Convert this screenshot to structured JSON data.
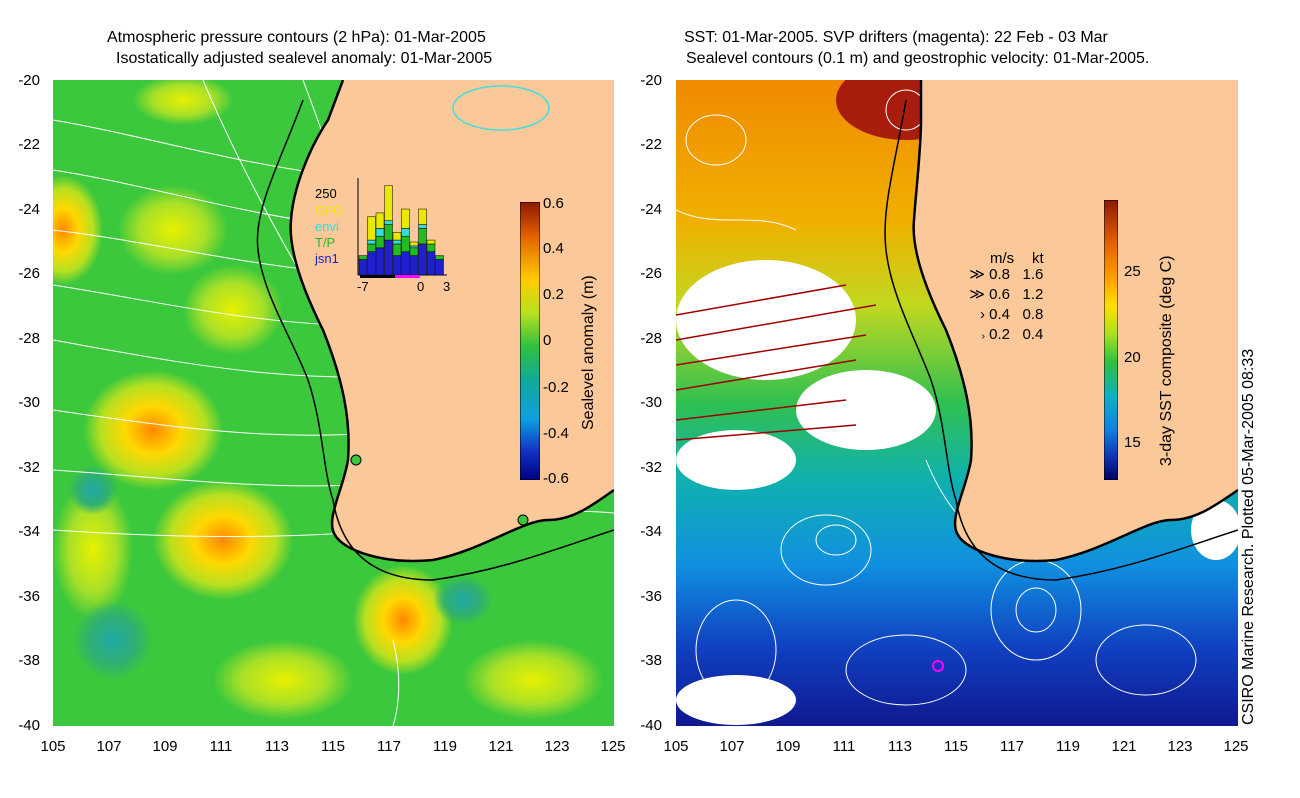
{
  "left_panel": {
    "title_line1": "Atmospheric pressure contours (2 hPa): 01-Mar-2005",
    "title_line2": "Isostatically adjusted sealevel anomaly: 01-Mar-2005",
    "colorbar": {
      "label": "Sealevel anomaly (m)",
      "ticks": [
        "0.6",
        "0.4",
        "0.2",
        "0",
        "-0.2",
        "-0.4",
        "-0.6"
      ],
      "range": [
        -0.6,
        0.6
      ]
    },
    "inset": {
      "ymax_label": "250",
      "legend": [
        "GFO",
        "envi",
        "T/P",
        "jsn1"
      ],
      "legend_colors": [
        "#e8e800",
        "#33dcdc",
        "#22bb22",
        "#1f1fd0"
      ],
      "x_ticks": [
        "-7",
        "0",
        "3"
      ],
      "bars": [
        {
          "gfo": 0,
          "envi": 0,
          "tp": 10,
          "jsn1": 40
        },
        {
          "gfo": 60,
          "envi": 10,
          "tp": 20,
          "jsn1": 60
        },
        {
          "gfo": 40,
          "envi": 20,
          "tp": 30,
          "jsn1": 70
        },
        {
          "gfo": 90,
          "envi": 10,
          "tp": 40,
          "jsn1": 90
        },
        {
          "gfo": 20,
          "envi": 10,
          "tp": 30,
          "jsn1": 50
        },
        {
          "gfo": 50,
          "envi": 20,
          "tp": 40,
          "jsn1": 60
        },
        {
          "gfo": 10,
          "envi": 5,
          "tp": 20,
          "jsn1": 50
        },
        {
          "gfo": 40,
          "envi": 10,
          "tp": 40,
          "jsn1": 80
        },
        {
          "gfo": 10,
          "envi": 0,
          "tp": 20,
          "jsn1": 60
        },
        {
          "gfo": 0,
          "envi": 0,
          "tp": 10,
          "jsn1": 40
        }
      ]
    }
  },
  "right_panel": {
    "title_line1": "SST: 01-Mar-2005. SVP drifters (magenta): 22 Feb - 03 Mar",
    "title_line2": "Sealevel contours (0.1 m) and geostrophic velocity: 01-Mar-2005.",
    "colorbar": {
      "label": "3-day SST composite (deg C)",
      "ticks": [
        "25",
        "20",
        "15"
      ],
      "range": [
        13,
        29
      ]
    },
    "velocity_key": {
      "header_ms": "m/s",
      "header_kt": "kt",
      "rows": [
        {
          "ms": "0.8",
          "kt": "1.6"
        },
        {
          "ms": "0.6",
          "kt": "1.2"
        },
        {
          "ms": "0.4",
          "kt": "0.8"
        },
        {
          "ms": "0.2",
          "kt": "0.4"
        }
      ]
    }
  },
  "axes": {
    "y_ticks": [
      "-20",
      "-22",
      "-24",
      "-26",
      "-28",
      "-30",
      "-32",
      "-34",
      "-36",
      "-38",
      "-40"
    ],
    "x_ticks": [
      "105",
      "107",
      "109",
      "111",
      "113",
      "115",
      "117",
      "119",
      "121",
      "123",
      "125"
    ]
  },
  "credit": "CSIRO Marine Research. Plotted 05-Mar-2005 08:33",
  "colors": {
    "land": "#fbc89a",
    "ocean_anomaly": "#3cc83c",
    "coast": "#000000",
    "contour": "#ffffff"
  }
}
